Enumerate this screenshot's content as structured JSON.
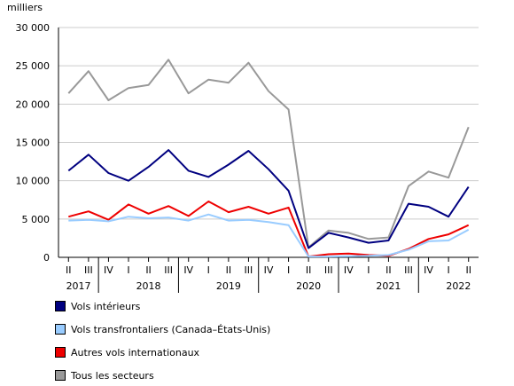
{
  "chart_data": {
    "type": "line",
    "ylabel": "milliers",
    "ylim": [
      0,
      30000
    ],
    "yticks": [
      0,
      5000,
      10000,
      15000,
      20000,
      25000,
      30000
    ],
    "ytick_labels": [
      "0",
      "5 000",
      "10 000",
      "15 000",
      "20 000",
      "25 000",
      "30 000"
    ],
    "quarters": [
      "II",
      "III",
      "IV",
      "I",
      "II",
      "III",
      "IV",
      "I",
      "II",
      "III",
      "IV",
      "I",
      "II",
      "III",
      "IV",
      "I",
      "II",
      "III",
      "IV",
      "I",
      "II"
    ],
    "years": [
      {
        "label": "2017",
        "center": 0.5
      },
      {
        "label": "2018",
        "center": 4.0
      },
      {
        "label": "2019",
        "center": 8.0
      },
      {
        "label": "2020",
        "center": 12.0
      },
      {
        "label": "2021",
        "center": 16.0
      },
      {
        "label": "2022",
        "center": 19.5
      }
    ],
    "year_dividers": [
      1.5,
      5.5,
      9.5,
      13.5,
      17.5
    ],
    "series": [
      {
        "name": "Vols intérieurs",
        "color": "#000080",
        "values": [
          11300,
          13400,
          11000,
          10000,
          11800,
          14000,
          11300,
          10500,
          12100,
          13900,
          11500,
          8700,
          1200,
          3200,
          2600,
          1900,
          2200,
          7000,
          6600,
          5300,
          9200
        ]
      },
      {
        "name": "Vols transfrontaliers (Canada–États-Unis)",
        "color": "#99ccff",
        "values": [
          4800,
          4900,
          4700,
          5300,
          5100,
          5200,
          4800,
          5600,
          4800,
          4900,
          4600,
          4200,
          100,
          100,
          150,
          200,
          300,
          1000,
          2100,
          2200,
          3600
        ]
      },
      {
        "name": "Autres vols internationaux",
        "color": "#ee0000",
        "values": [
          5300,
          6000,
          4900,
          6900,
          5700,
          6700,
          5400,
          7300,
          5900,
          6600,
          5700,
          6500,
          100,
          400,
          500,
          300,
          200,
          1100,
          2400,
          3000,
          4200
        ]
      },
      {
        "name": "Tous les secteurs",
        "color": "#999999",
        "values": [
          21400,
          24300,
          20500,
          22100,
          22500,
          25800,
          21400,
          23200,
          22800,
          25400,
          21700,
          19300,
          1300,
          3500,
          3200,
          2400,
          2600,
          9300,
          11200,
          10400,
          17000
        ]
      }
    ]
  }
}
